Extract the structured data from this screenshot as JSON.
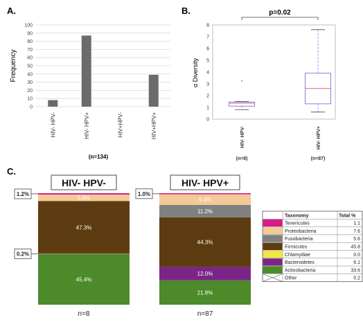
{
  "panel_a": {
    "label": "A.",
    "chart_data": {
      "type": "bar",
      "ylabel": "Frequency",
      "xlabel": "",
      "ylim": [
        0,
        100
      ],
      "yticks": [
        0,
        10,
        20,
        30,
        40,
        50,
        60,
        70,
        80,
        90,
        100
      ],
      "grid": true,
      "categories": [
        "HIV- HPV-",
        "HIV- HPV+",
        "HIV+HPV-",
        "HIV+HPV+"
      ],
      "values": [
        8,
        87,
        0,
        39
      ],
      "note": "(n=134)",
      "bar_color": "#6b6b6b"
    }
  },
  "panel_b": {
    "label": "B.",
    "chart_data": {
      "type": "box",
      "ylabel": "α Diversity",
      "ylim": [
        0,
        8
      ],
      "yticks": [
        0,
        1,
        2,
        3,
        4,
        5,
        6,
        7,
        8
      ],
      "categories": [
        "HIV- HPV-",
        "HIV- HPV+"
      ],
      "n_labels": [
        "(n=8)",
        "(n=87)"
      ],
      "boxes": [
        {
          "whisker_low": 0.8,
          "q1": 1.1,
          "median": 1.35,
          "q3": 1.45,
          "whisker_high": 1.5,
          "outliers": [
            3.25
          ]
        },
        {
          "whisker_low": 0.6,
          "q1": 1.3,
          "median": 2.6,
          "q3": 3.9,
          "whisker_high": 7.6,
          "outliers": []
        }
      ],
      "annotation": "p=0.02",
      "box_color": "#8a7fd6",
      "median_color": "#e06080",
      "whisker_color": "#8a7fd6"
    }
  },
  "panel_c": {
    "label": "C.",
    "chart_data": {
      "type": "stacked-bar",
      "categories": [
        "HIV- HPV-",
        "HIV- HPV+"
      ],
      "n_labels": [
        "n=8",
        "n=87"
      ],
      "series_order_bottom_to_top": [
        "Actinobacteria",
        "Other",
        "Bacteroidetes",
        "Chlamydiae",
        "Firmicutes",
        "Fusobacteria",
        "Proteobacteria",
        "Tenericutes"
      ],
      "bars": [
        {
          "values": {
            "Actinobacteria": 45.4,
            "Other": 0.2,
            "Bacteroidetes": 0.0,
            "Chlamydiae": 0.0,
            "Firmicutes": 47.3,
            "Fusobacteria": 0.0,
            "Proteobacteria": 5.8,
            "Tenericutes": 1.2
          },
          "labels": [
            {
              "series": "Actinobacteria",
              "text": "45.4%"
            },
            {
              "series": "Firmicutes",
              "text": "47.3%"
            },
            {
              "series": "Proteobacteria",
              "text": "5.8%"
            }
          ],
          "callouts": [
            {
              "series": "Tenericutes",
              "text": "1.2%"
            },
            {
              "series": "Other",
              "text": "0.2%"
            }
          ]
        },
        {
          "values": {
            "Actinobacteria": 21.8,
            "Other": 0.0,
            "Bacteroidetes": 12.0,
            "Chlamydiae": 0.0,
            "Firmicutes": 44.3,
            "Fusobacteria": 11.2,
            "Proteobacteria": 9.4,
            "Tenericutes": 1.0
          },
          "labels": [
            {
              "series": "Actinobacteria",
              "text": "21.8%"
            },
            {
              "series": "Bacteroidetes",
              "text": "12.0%"
            },
            {
              "series": "Firmicutes",
              "text": "44.3%"
            },
            {
              "series": "Fusobacteria",
              "text": "11.2%"
            },
            {
              "series": "Proteobacteria",
              "text": "9.4%"
            }
          ],
          "callouts": [
            {
              "series": "Tenericutes",
              "text": "1.0%"
            }
          ]
        }
      ],
      "colors": {
        "Tenericutes": "#d81b87",
        "Proteobacteria": "#f3c996",
        "Fusobacteria": "#808080",
        "Firmicutes": "#5e3c11",
        "Chlamydiae": "#f2e640",
        "Bacteroidetes": "#7a2587",
        "Actinobacteria": "#4c8a2a",
        "Other": "#ffffff"
      },
      "legend_table": {
        "headers": [
          "Taxonomy",
          "Total %"
        ],
        "rows": [
          {
            "name": "Tenericutes",
            "value": "1.1"
          },
          {
            "name": "Proteobacteria",
            "value": "7.6"
          },
          {
            "name": "Fusobacteria",
            "value": "5.6"
          },
          {
            "name": "Firmicutes",
            "value": "45.8"
          },
          {
            "name": "Chlamydiae",
            "value": "0.0"
          },
          {
            "name": "Bacteroidetes",
            "value": "6.1"
          },
          {
            "name": "Actinobacteria",
            "value": "33.6"
          },
          {
            "name": "Other",
            "value": "0.2"
          }
        ]
      }
    }
  }
}
